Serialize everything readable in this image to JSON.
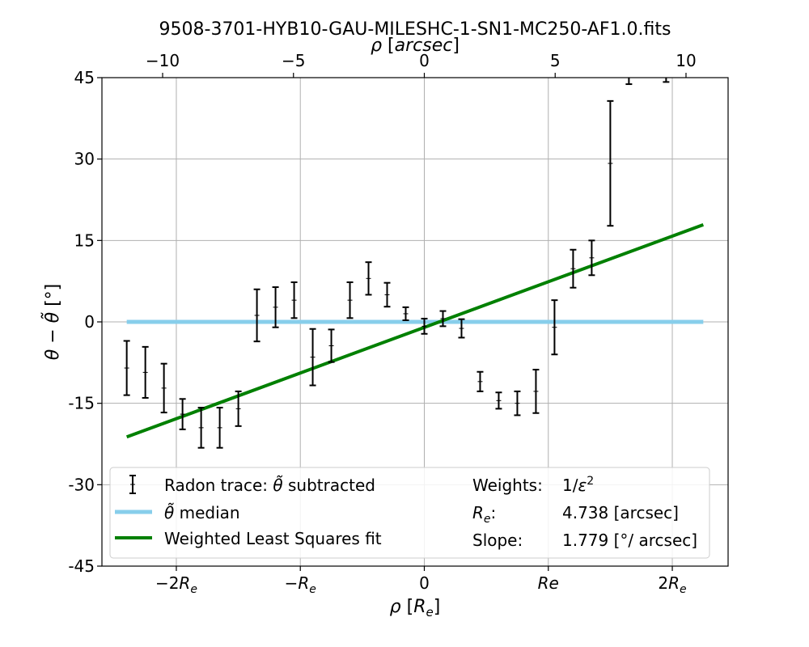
{
  "chart_data": {
    "type": "scatter",
    "title": "9508-3701-HYB10-GAU-MILESHC-1-SN1-MC250-AF1.0.fits",
    "xlabel": "ρ [R_e]",
    "ylabel": "θ − θ̃ [°]",
    "top_xlabel": "ρ [arcsec]",
    "xlim": [
      -2.6,
      2.45
    ],
    "ylim": [
      -45,
      45
    ],
    "yticks": [
      45,
      30,
      15,
      0,
      -15,
      -30,
      -45
    ],
    "ytick_labels": [
      "45",
      "30",
      "15",
      "0",
      "-15",
      "-30",
      "-45"
    ],
    "xticks": [
      {
        "value": -2,
        "label": "−2R",
        "sub": "e"
      },
      {
        "value": -1,
        "label": "−R",
        "sub": "e"
      },
      {
        "value": 0,
        "label": "0",
        "sub": ""
      },
      {
        "value": 1,
        "label": "Re",
        "sub": ""
      },
      {
        "value": 2,
        "label": "2R",
        "sub": "e"
      }
    ],
    "top_xticks": [
      {
        "value": -10,
        "label": "−10"
      },
      {
        "value": -5,
        "label": "−5"
      },
      {
        "value": 0,
        "label": "0"
      },
      {
        "value": 5,
        "label": "5"
      },
      {
        "value": 10,
        "label": "10"
      }
    ],
    "Re_arcsec": 4.738,
    "grid": true,
    "series": [
      {
        "name": "Radon trace: θ̃ subtracted",
        "style": "errorbar",
        "color": "#000000",
        "points": [
          {
            "x": -2.4,
            "y": -8.5,
            "err": 5.0
          },
          {
            "x": -2.25,
            "y": -9.3,
            "err": 4.7
          },
          {
            "x": -2.1,
            "y": -12.2,
            "err": 4.5
          },
          {
            "x": -1.95,
            "y": -17.0,
            "err": 2.8
          },
          {
            "x": -1.8,
            "y": -19.5,
            "err": 3.7
          },
          {
            "x": -1.65,
            "y": -19.5,
            "err": 3.7
          },
          {
            "x": -1.5,
            "y": -16.0,
            "err": 3.2
          },
          {
            "x": -1.35,
            "y": 1.2,
            "err": 4.8
          },
          {
            "x": -1.2,
            "y": 2.7,
            "err": 3.7
          },
          {
            "x": -1.05,
            "y": 4.0,
            "err": 3.3
          },
          {
            "x": -0.9,
            "y": -6.5,
            "err": 5.2
          },
          {
            "x": -0.75,
            "y": -4.4,
            "err": 3.0
          },
          {
            "x": -0.6,
            "y": 4.0,
            "err": 3.3
          },
          {
            "x": -0.45,
            "y": 8.0,
            "err": 3.0
          },
          {
            "x": -0.3,
            "y": 5.0,
            "err": 2.2
          },
          {
            "x": -0.15,
            "y": 1.5,
            "err": 1.2
          },
          {
            "x": 0.0,
            "y": -0.8,
            "err": 1.4
          },
          {
            "x": 0.15,
            "y": 0.6,
            "err": 1.4
          },
          {
            "x": 0.3,
            "y": -1.2,
            "err": 1.7
          },
          {
            "x": 0.45,
            "y": -11.0,
            "err": 1.8
          },
          {
            "x": 0.6,
            "y": -14.5,
            "err": 1.5
          },
          {
            "x": 0.75,
            "y": -15.0,
            "err": 2.2
          },
          {
            "x": 0.9,
            "y": -12.8,
            "err": 4.0
          },
          {
            "x": 1.05,
            "y": -1.0,
            "err": 5.0
          },
          {
            "x": 1.2,
            "y": 9.8,
            "err": 3.5
          },
          {
            "x": 1.35,
            "y": 11.8,
            "err": 3.2
          },
          {
            "x": 1.5,
            "y": 29.2,
            "err": 11.5
          },
          {
            "x": 1.65,
            "y": 45.0,
            "err": 1.2
          },
          {
            "x": 1.95,
            "y": 45.0,
            "err": 0.8
          }
        ]
      },
      {
        "name": "θ̃ median",
        "style": "line",
        "color": "#87ceeb",
        "x": [
          -2.4,
          2.25
        ],
        "y": [
          0,
          0
        ]
      },
      {
        "name": "Weighted Least Squares fit",
        "style": "line",
        "color": "#008000",
        "x": [
          -2.4,
          2.25
        ],
        "y": [
          -21.2,
          17.9
        ]
      }
    ],
    "legend": {
      "placement": "lower center",
      "entries": [
        {
          "label": "Radon trace: θ̃ subtracted",
          "marker": "errorbar"
        },
        {
          "label": "θ̃ median",
          "marker": "line",
          "color": "#87ceeb"
        },
        {
          "label": "Weighted Least Squares fit",
          "marker": "line",
          "color": "#008000"
        }
      ],
      "info": [
        {
          "key": "Weights:",
          "value": "1/ε²"
        },
        {
          "key": "Rₑ:",
          "value": "4.738 [arcsec]"
        },
        {
          "key": "Slope:",
          "value": "1.779 [°/ arcsec]"
        }
      ]
    }
  }
}
